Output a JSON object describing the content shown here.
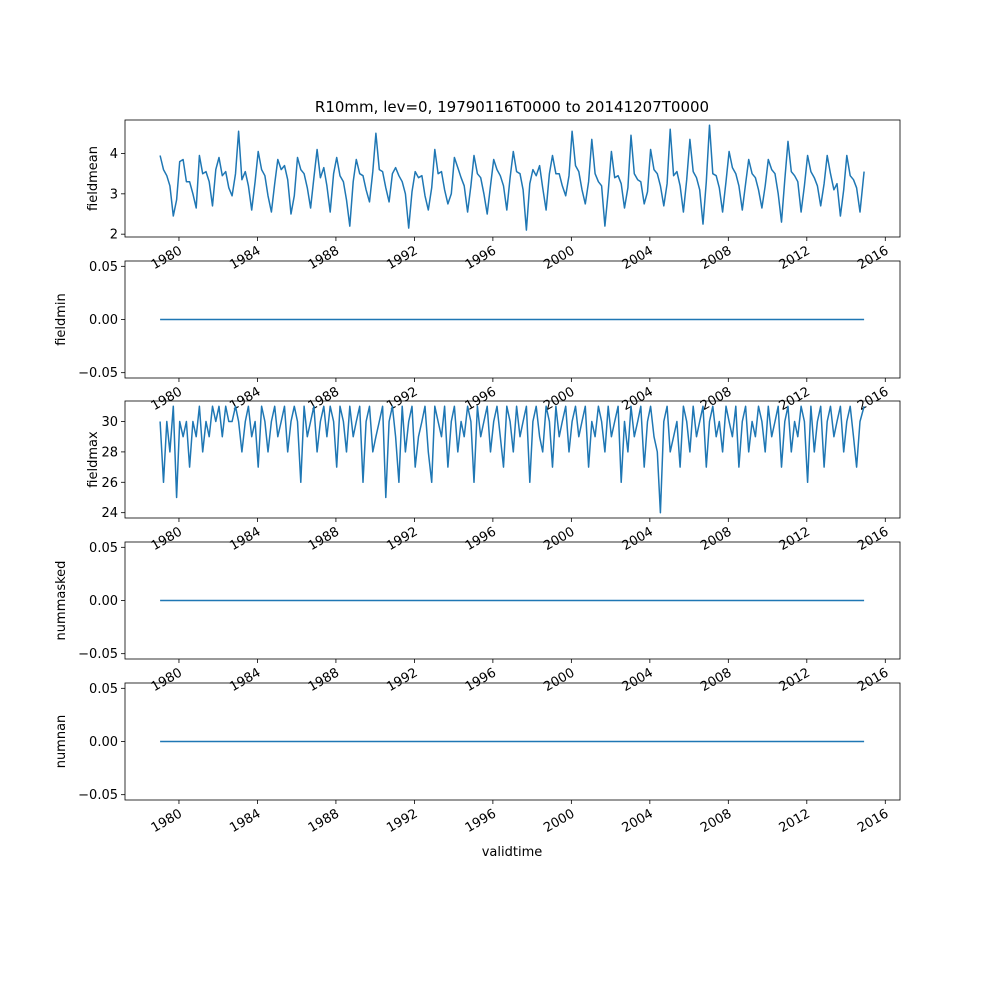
{
  "title": "R10mm, lev=0, 19790116T0000 to 20141207T0000",
  "colors": {
    "series": "#1f77b4",
    "frame": "#000000"
  },
  "chart_data": [
    {
      "type": "line",
      "ylabel": "fieldmean",
      "ylim": [
        1.93,
        4.83
      ],
      "yticks": [
        2,
        3,
        4
      ],
      "yticklabels": [
        "2",
        "3",
        "4"
      ],
      "x": [
        1979.04,
        1979.21,
        1979.38,
        1979.54,
        1979.71,
        1979.88,
        1980.04,
        1980.21,
        1980.38,
        1980.54,
        1980.71,
        1980.88,
        1981.04,
        1981.21,
        1981.38,
        1981.54,
        1981.71,
        1981.88,
        1982.04,
        1982.21,
        1982.38,
        1982.54,
        1982.71,
        1982.88,
        1983.04,
        1983.21,
        1983.38,
        1983.54,
        1983.71,
        1983.88,
        1984.04,
        1984.21,
        1984.38,
        1984.54,
        1984.71,
        1984.88,
        1985.04,
        1985.21,
        1985.38,
        1985.54,
        1985.71,
        1985.88,
        1986.04,
        1986.21,
        1986.38,
        1986.54,
        1986.71,
        1986.88,
        1987.04,
        1987.21,
        1987.38,
        1987.54,
        1987.71,
        1987.88,
        1988.04,
        1988.21,
        1988.38,
        1988.54,
        1988.71,
        1988.88,
        1989.04,
        1989.21,
        1989.38,
        1989.54,
        1989.71,
        1989.88,
        1990.04,
        1990.21,
        1990.38,
        1990.54,
        1990.71,
        1990.88,
        1991.04,
        1991.21,
        1991.38,
        1991.54,
        1991.71,
        1991.88,
        1992.04,
        1992.21,
        1992.38,
        1992.54,
        1992.71,
        1992.88,
        1993.04,
        1993.21,
        1993.38,
        1993.54,
        1993.71,
        1993.88,
        1994.04,
        1994.21,
        1994.38,
        1994.54,
        1994.71,
        1994.88,
        1995.04,
        1995.21,
        1995.38,
        1995.54,
        1995.71,
        1995.88,
        1996.04,
        1996.21,
        1996.38,
        1996.54,
        1996.71,
        1996.88,
        1997.04,
        1997.21,
        1997.38,
        1997.54,
        1997.71,
        1997.88,
        1998.04,
        1998.21,
        1998.38,
        1998.54,
        1998.71,
        1998.88,
        1999.04,
        1999.21,
        1999.38,
        1999.54,
        1999.71,
        1999.88,
        2000.04,
        2000.21,
        2000.38,
        2000.54,
        2000.71,
        2000.88,
        2001.04,
        2001.21,
        2001.38,
        2001.54,
        2001.71,
        2001.88,
        2002.04,
        2002.21,
        2002.38,
        2002.54,
        2002.71,
        2002.88,
        2003.04,
        2003.21,
        2003.38,
        2003.54,
        2003.71,
        2003.88,
        2004.04,
        2004.21,
        2004.38,
        2004.54,
        2004.71,
        2004.88,
        2005.04,
        2005.21,
        2005.38,
        2005.54,
        2005.71,
        2005.88,
        2006.04,
        2006.21,
        2006.38,
        2006.54,
        2006.71,
        2006.88,
        2007.04,
        2007.21,
        2007.38,
        2007.54,
        2007.71,
        2007.88,
        2008.04,
        2008.21,
        2008.38,
        2008.54,
        2008.71,
        2008.88,
        2009.04,
        2009.21,
        2009.38,
        2009.54,
        2009.71,
        2009.88,
        2010.04,
        2010.21,
        2010.38,
        2010.54,
        2010.71,
        2010.88,
        2011.04,
        2011.21,
        2011.38,
        2011.54,
        2011.71,
        2011.88,
        2012.04,
        2012.21,
        2012.38,
        2012.54,
        2012.71,
        2012.88,
        2013.04,
        2013.21,
        2013.38,
        2013.54,
        2013.71,
        2013.88,
        2014.04,
        2014.21,
        2014.38,
        2014.54,
        2014.71,
        2014.92
      ],
      "values": [
        3.95,
        3.6,
        3.45,
        3.2,
        2.45,
        2.85,
        3.8,
        3.85,
        3.3,
        3.3,
        3.0,
        2.65,
        3.95,
        3.5,
        3.55,
        3.3,
        2.7,
        3.6,
        3.9,
        3.45,
        3.55,
        3.15,
        2.95,
        3.5,
        4.55,
        3.35,
        3.55,
        3.2,
        2.6,
        3.3,
        4.05,
        3.6,
        3.45,
        2.95,
        2.55,
        3.25,
        3.85,
        3.6,
        3.7,
        3.35,
        2.5,
        2.95,
        3.9,
        3.6,
        3.5,
        3.15,
        2.65,
        3.4,
        4.1,
        3.4,
        3.65,
        3.2,
        2.55,
        3.5,
        3.9,
        3.45,
        3.3,
        2.85,
        2.2,
        3.3,
        3.85,
        3.5,
        3.45,
        3.1,
        2.8,
        3.55,
        4.5,
        3.6,
        3.55,
        3.15,
        2.8,
        3.5,
        3.65,
        3.45,
        3.3,
        3.0,
        2.15,
        3.05,
        3.55,
        3.4,
        3.45,
        2.95,
        2.6,
        3.15,
        4.1,
        3.5,
        3.55,
        3.1,
        2.75,
        3.0,
        3.9,
        3.65,
        3.4,
        3.2,
        2.55,
        3.2,
        3.95,
        3.5,
        3.4,
        3.0,
        2.5,
        3.2,
        3.85,
        3.6,
        3.45,
        3.2,
        2.6,
        3.4,
        4.05,
        3.55,
        3.5,
        3.1,
        2.1,
        3.25,
        3.6,
        3.45,
        3.7,
        3.15,
        2.6,
        3.5,
        3.95,
        3.5,
        3.5,
        3.2,
        2.95,
        3.45,
        4.55,
        3.7,
        3.55,
        3.1,
        2.75,
        3.3,
        4.35,
        3.5,
        3.3,
        3.2,
        2.2,
        3.05,
        4.05,
        3.4,
        3.45,
        3.25,
        2.65,
        3.15,
        4.45,
        3.5,
        3.35,
        3.3,
        2.75,
        3.05,
        4.1,
        3.6,
        3.5,
        3.2,
        2.7,
        3.25,
        4.6,
        3.45,
        3.55,
        3.2,
        2.55,
        3.35,
        4.35,
        3.55,
        3.4,
        3.1,
        2.25,
        3.3,
        4.7,
        3.5,
        3.45,
        3.15,
        2.55,
        3.3,
        4.05,
        3.65,
        3.5,
        3.2,
        2.6,
        3.25,
        3.85,
        3.5,
        3.4,
        3.1,
        2.65,
        3.2,
        3.85,
        3.6,
        3.5,
        3.0,
        2.3,
        3.35,
        4.3,
        3.55,
        3.45,
        3.3,
        2.55,
        3.2,
        3.95,
        3.55,
        3.4,
        3.2,
        2.7,
        3.25,
        3.95,
        3.5,
        3.1,
        3.25,
        2.45,
        3.1,
        3.95,
        3.45,
        3.35,
        3.15,
        2.55,
        3.55
      ]
    },
    {
      "type": "line",
      "ylabel": "fieldmin",
      "ylim": [
        -0.055,
        0.055
      ],
      "yticks": [
        -0.05,
        0.0,
        0.05
      ],
      "yticklabels": [
        "−0.05",
        "0.00",
        "0.05"
      ],
      "x": [
        1979.04,
        2014.92
      ],
      "values": [
        0.0,
        0.0
      ]
    },
    {
      "type": "line",
      "ylabel": "fieldmax",
      "ylim": [
        23.65,
        31.35
      ],
      "yticks": [
        24,
        26,
        28,
        30
      ],
      "yticklabels": [
        "24",
        "26",
        "28",
        "30"
      ],
      "x": [
        1979.04,
        1979.21,
        1979.38,
        1979.54,
        1979.71,
        1979.88,
        1980.04,
        1980.21,
        1980.38,
        1980.54,
        1980.71,
        1980.88,
        1981.04,
        1981.21,
        1981.38,
        1981.54,
        1981.71,
        1981.88,
        1982.04,
        1982.21,
        1982.38,
        1982.54,
        1982.71,
        1982.88,
        1983.04,
        1983.21,
        1983.38,
        1983.54,
        1983.71,
        1983.88,
        1984.04,
        1984.21,
        1984.38,
        1984.54,
        1984.71,
        1984.88,
        1985.04,
        1985.21,
        1985.38,
        1985.54,
        1985.71,
        1985.88,
        1986.04,
        1986.21,
        1986.38,
        1986.54,
        1986.71,
        1986.88,
        1987.04,
        1987.21,
        1987.38,
        1987.54,
        1987.71,
        1987.88,
        1988.04,
        1988.21,
        1988.38,
        1988.54,
        1988.71,
        1988.88,
        1989.04,
        1989.21,
        1989.38,
        1989.54,
        1989.71,
        1989.88,
        1990.04,
        1990.21,
        1990.38,
        1990.54,
        1990.71,
        1990.88,
        1991.04,
        1991.21,
        1991.38,
        1991.54,
        1991.71,
        1991.88,
        1992.04,
        1992.21,
        1992.38,
        1992.54,
        1992.71,
        1992.88,
        1993.04,
        1993.21,
        1993.38,
        1993.54,
        1993.71,
        1993.88,
        1994.04,
        1994.21,
        1994.38,
        1994.54,
        1994.71,
        1994.88,
        1995.04,
        1995.21,
        1995.38,
        1995.54,
        1995.71,
        1995.88,
        1996.04,
        1996.21,
        1996.38,
        1996.54,
        1996.71,
        1996.88,
        1997.04,
        1997.21,
        1997.38,
        1997.54,
        1997.71,
        1997.88,
        1998.04,
        1998.21,
        1998.38,
        1998.54,
        1998.71,
        1998.88,
        1999.04,
        1999.21,
        1999.38,
        1999.54,
        1999.71,
        1999.88,
        2000.04,
        2000.21,
        2000.38,
        2000.54,
        2000.71,
        2000.88,
        2001.04,
        2001.21,
        2001.38,
        2001.54,
        2001.71,
        2001.88,
        2002.04,
        2002.21,
        2002.38,
        2002.54,
        2002.71,
        2002.88,
        2003.04,
        2003.21,
        2003.38,
        2003.54,
        2003.71,
        2003.88,
        2004.04,
        2004.21,
        2004.38,
        2004.54,
        2004.71,
        2004.88,
        2005.04,
        2005.21,
        2005.38,
        2005.54,
        2005.71,
        2005.88,
        2006.04,
        2006.21,
        2006.38,
        2006.54,
        2006.71,
        2006.88,
        2007.04,
        2007.21,
        2007.38,
        2007.54,
        2007.71,
        2007.88,
        2008.04,
        2008.21,
        2008.38,
        2008.54,
        2008.71,
        2008.88,
        2009.04,
        2009.21,
        2009.38,
        2009.54,
        2009.71,
        2009.88,
        2010.04,
        2010.21,
        2010.38,
        2010.54,
        2010.71,
        2010.88,
        2011.04,
        2011.21,
        2011.38,
        2011.54,
        2011.71,
        2011.88,
        2012.04,
        2012.21,
        2012.38,
        2012.54,
        2012.71,
        2012.88,
        2013.04,
        2013.21,
        2013.38,
        2013.54,
        2013.71,
        2013.88,
        2014.04,
        2014.21,
        2014.38,
        2014.54,
        2014.71,
        2014.92
      ],
      "values": [
        30,
        26,
        30,
        28,
        31,
        25,
        30,
        29,
        30,
        27,
        30,
        29,
        31,
        28,
        30,
        29,
        31,
        30,
        31,
        29,
        31,
        30,
        30,
        31,
        30,
        28,
        30,
        31,
        29,
        30,
        27,
        31,
        30,
        28,
        30,
        31,
        29,
        30,
        31,
        28,
        30,
        31,
        30,
        26,
        31,
        29,
        30,
        31,
        28,
        30,
        31,
        29,
        31,
        30,
        27,
        31,
        30,
        28,
        31,
        29,
        30,
        31,
        26,
        30,
        31,
        28,
        29,
        30,
        31,
        25,
        30,
        31,
        29,
        26,
        31,
        28,
        30,
        31,
        27,
        29,
        30,
        31,
        28,
        26,
        31,
        30,
        29,
        31,
        27,
        30,
        31,
        28,
        30,
        29,
        31,
        30,
        26,
        31,
        29,
        30,
        31,
        28,
        30,
        31,
        29,
        27,
        31,
        30,
        28,
        31,
        29,
        30,
        31,
        26,
        30,
        31,
        29,
        28,
        31,
        30,
        27,
        31,
        29,
        30,
        31,
        28,
        30,
        31,
        29,
        30,
        31,
        27,
        30,
        29,
        31,
        30,
        28,
        31,
        29,
        30,
        31,
        26,
        30,
        28,
        31,
        29,
        30,
        31,
        27,
        30,
        31,
        29,
        28,
        24,
        30,
        31,
        28,
        29,
        30,
        27,
        31,
        30,
        28,
        31,
        29,
        30,
        31,
        27,
        30,
        31,
        29,
        30,
        28,
        31,
        30,
        29,
        31,
        27,
        30,
        31,
        28,
        30,
        29,
        31,
        30,
        28,
        31,
        29,
        30,
        31,
        27,
        30,
        31,
        28,
        30,
        29,
        31,
        30,
        26,
        31,
        28,
        30,
        31,
        27,
        30,
        31,
        29,
        30,
        31,
        28,
        30,
        31,
        29,
        27,
        30,
        31
      ]
    },
    {
      "type": "line",
      "ylabel": "nummasked",
      "ylim": [
        -0.055,
        0.055
      ],
      "yticks": [
        -0.05,
        0.0,
        0.05
      ],
      "yticklabels": [
        "−0.05",
        "0.00",
        "0.05"
      ],
      "x": [
        1979.04,
        2014.92
      ],
      "values": [
        0.0,
        0.0
      ]
    },
    {
      "type": "line",
      "ylabel": "numnan",
      "ylim": [
        -0.055,
        0.055
      ],
      "yticks": [
        -0.05,
        0.0,
        0.05
      ],
      "yticklabels": [
        "−0.05",
        "0.00",
        "0.05"
      ],
      "x": [
        1979.04,
        2014.92
      ],
      "values": [
        0.0,
        0.0
      ]
    }
  ],
  "x_axis": {
    "label": "validtime",
    "xlim": [
      1977.25,
      2016.75
    ],
    "ticks": [
      1980,
      1984,
      1988,
      1992,
      1996,
      2000,
      2004,
      2008,
      2012,
      2016
    ],
    "ticklabels": [
      "1980",
      "1984",
      "1988",
      "1992",
      "1996",
      "2000",
      "2004",
      "2008",
      "2012",
      "2016"
    ]
  }
}
